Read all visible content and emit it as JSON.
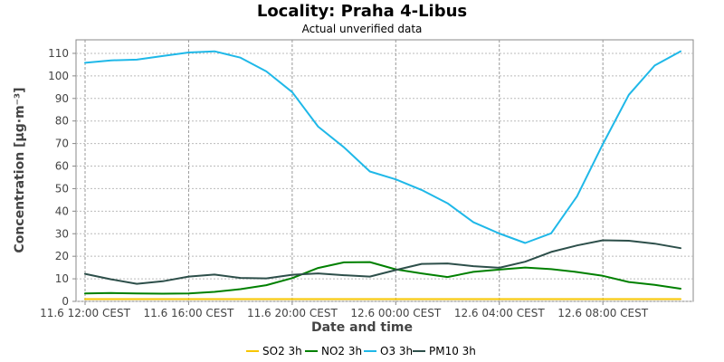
{
  "chart_data": {
    "type": "line",
    "title": "Locality: Praha 4-Libus",
    "subtitle": "Actual unverified data",
    "xlabel": "Date and time",
    "ylabel": "Concentration [µg·m⁻³]",
    "x": [
      "11.6 12:00 CEST",
      "11.6 13:00 CEST",
      "11.6 14:00 CEST",
      "11.6 15:00 CEST",
      "11.6 16:00 CEST",
      "11.6 17:00 CEST",
      "11.6 18:00 CEST",
      "11.6 19:00 CEST",
      "11.6 20:00 CEST",
      "11.6 21:00 CEST",
      "11.6 22:00 CEST",
      "11.6 23:00 CEST",
      "12.6 00:00 CEST",
      "12.6 01:00 CEST",
      "12.6 02:00 CEST",
      "12.6 03:00 CEST",
      "12.6 04:00 CEST",
      "12.6 05:00 CEST",
      "12.6 06:00 CEST",
      "12.6 07:00 CEST",
      "12.6 08:00 CEST",
      "12.6 09:00 CEST",
      "12.6 10:00 CEST",
      "12.6 11:00 CEST"
    ],
    "x_ticks": [
      "11.6 12:00 CEST",
      "11.6 16:00 CEST",
      "11.6 20:00 CEST",
      "12.6 00:00 CEST",
      "12.6 04:00 CEST",
      "12.6 08:00 CEST"
    ],
    "x_tick_hours": [
      0,
      4,
      8,
      12,
      16,
      20
    ],
    "y_ticks": [
      0,
      10,
      20,
      30,
      40,
      50,
      60,
      70,
      80,
      90,
      100,
      110
    ],
    "ylim": [
      0,
      116
    ],
    "grid": true,
    "legend_position": "bottom",
    "series": [
      {
        "name": "SO2 3h",
        "color": "#f7c600",
        "values": [
          1,
          1,
          1,
          1,
          1,
          1,
          1,
          1,
          1,
          1,
          1,
          1,
          1,
          1,
          1,
          1,
          1,
          1,
          1,
          1,
          1,
          1,
          1,
          1
        ]
      },
      {
        "name": "NO2 3h",
        "color": "#008000",
        "values": [
          3.5,
          3.7,
          3.5,
          3.4,
          3.5,
          4.2,
          5.4,
          7.2,
          10.3,
          14.8,
          17.3,
          17.4,
          14.2,
          12.4,
          10.8,
          13.1,
          14.1,
          15.0,
          14.3,
          13.0,
          11.3,
          8.6,
          7.3,
          5.6
        ]
      },
      {
        "name": "O3 3h",
        "color": "#1fb8e8",
        "values": [
          105.8,
          106.9,
          107.2,
          108.8,
          110.4,
          110.9,
          108.1,
          102.0,
          92.8,
          77.5,
          68.3,
          57.6,
          54.1,
          49.4,
          43.5,
          35.1,
          30.1,
          25.9,
          30.2,
          46.6,
          69.8,
          91.6,
          104.6,
          110.9
        ]
      },
      {
        "name": "PM10 3h",
        "color": "#2d4f4a",
        "values": [
          12.2,
          9.8,
          7.8,
          8.9,
          11.0,
          11.9,
          10.4,
          10.2,
          11.8,
          12.4,
          11.6,
          11.0,
          13.9,
          16.6,
          16.8,
          15.6,
          14.9,
          17.6,
          21.9,
          24.8,
          27.1,
          26.9,
          25.6,
          23.6
        ]
      }
    ]
  }
}
